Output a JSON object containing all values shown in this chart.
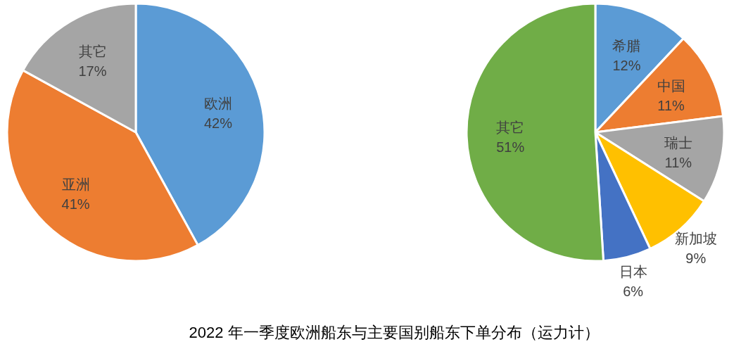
{
  "chart_data": [
    {
      "type": "pie",
      "title": "2022 年一季度欧洲船东与主要国别船东下单分布（运力计）",
      "categories": [
        "欧洲",
        "亚洲",
        "其它"
      ],
      "values": [
        42,
        41,
        17
      ],
      "colors": [
        "#5b9bd5",
        "#ed7d31",
        "#a5a5a5"
      ],
      "value_labels": [
        "42%",
        "41%",
        "17%"
      ]
    },
    {
      "type": "pie",
      "categories": [
        "希腊",
        "中国",
        "瑞士",
        "新加坡",
        "日本",
        "其它"
      ],
      "values": [
        12,
        11,
        11,
        9,
        6,
        51
      ],
      "colors": [
        "#5b9bd5",
        "#ed7d31",
        "#a5a5a5",
        "#ffc000",
        "#4472c4",
        "#70ad47"
      ],
      "value_labels": [
        "12%",
        "11%",
        "11%",
        "9%",
        "6%",
        "51%"
      ]
    }
  ]
}
